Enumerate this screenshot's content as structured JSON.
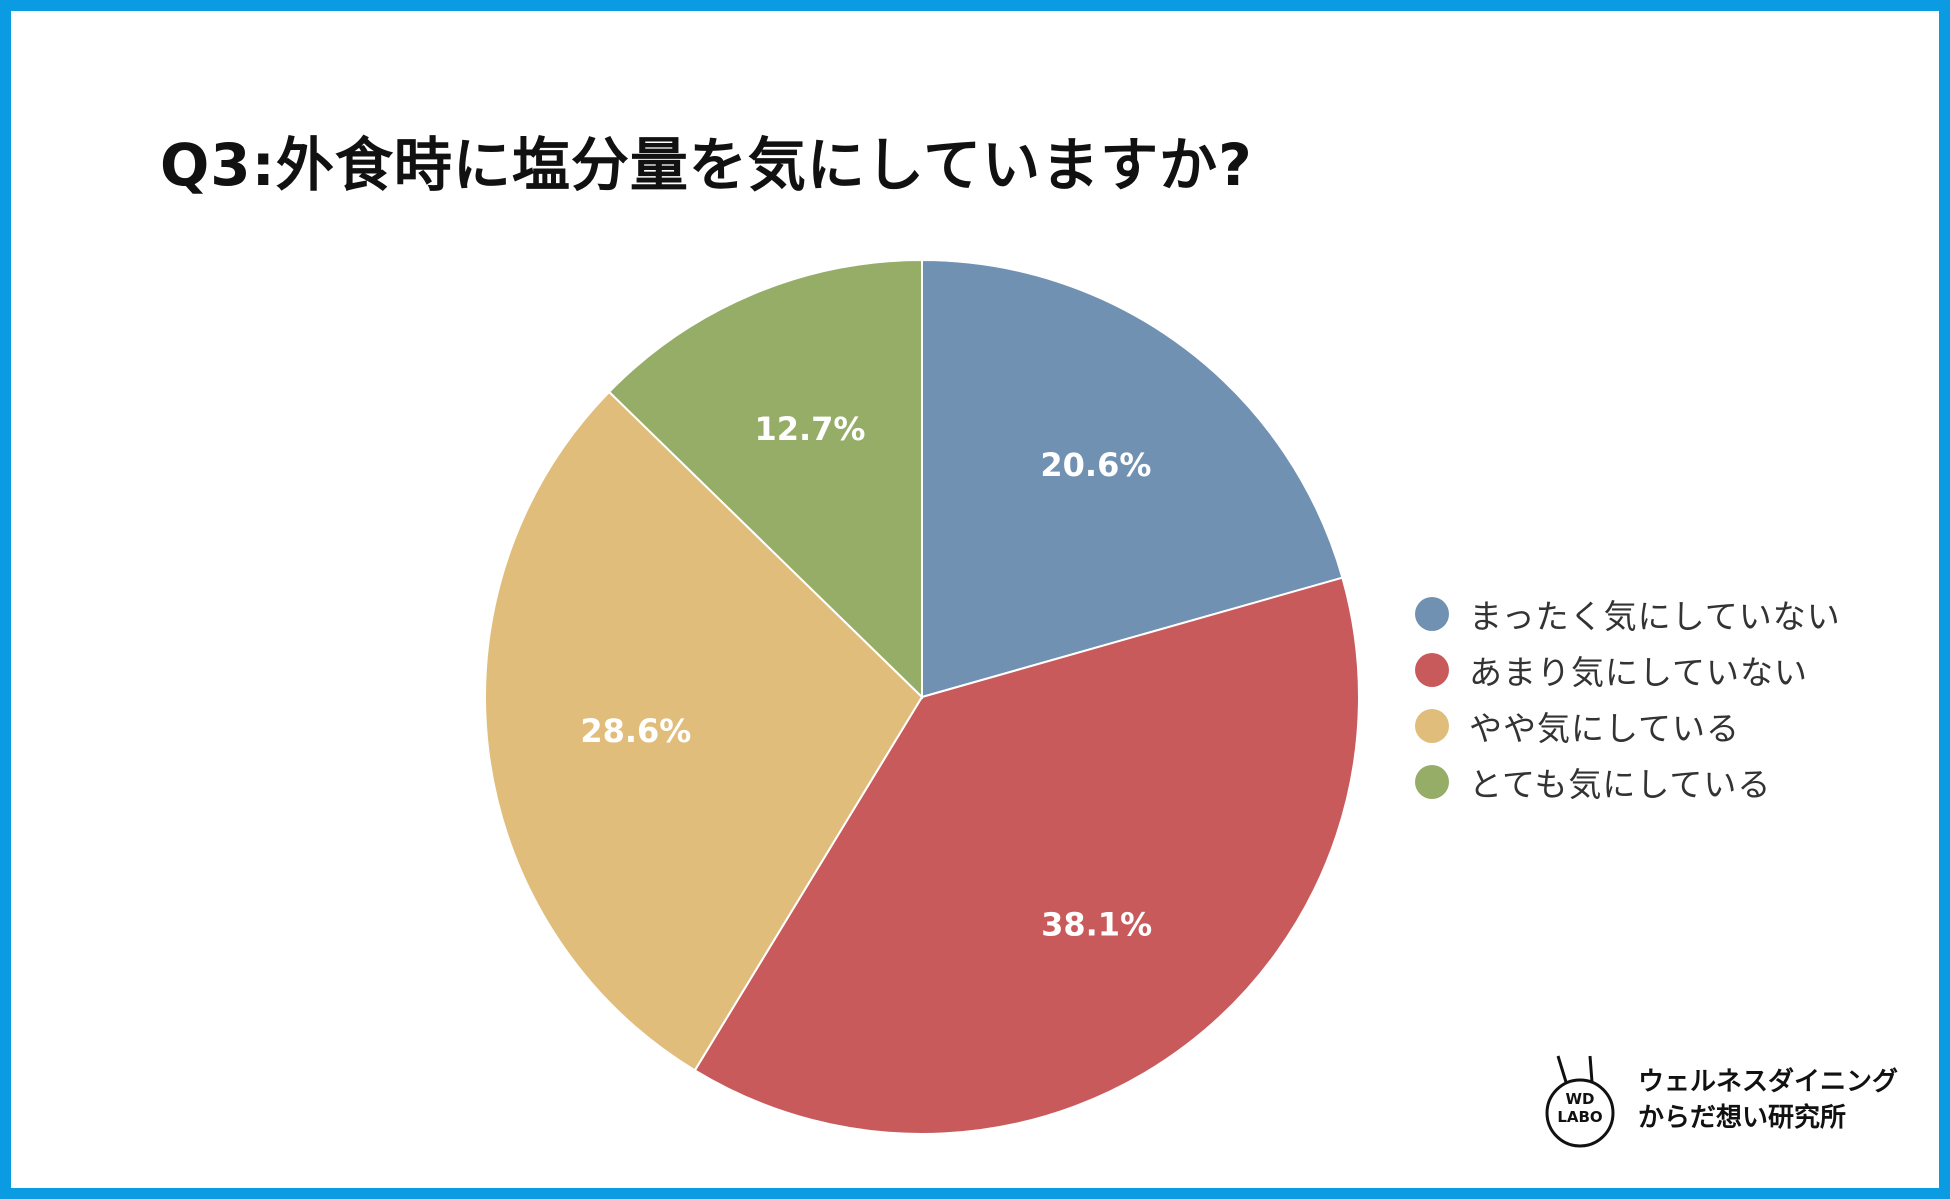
{
  "title": "Q3:外食時に塩分量を気にしていますか?",
  "chart_data": {
    "type": "pie",
    "title": "Q3:外食時に塩分量を気にしていますか?",
    "categories": [
      "まったく気にしていない",
      "あまり気にしていない",
      "やや気にしている",
      "とても気にしている"
    ],
    "values": [
      20.6,
      38.1,
      28.6,
      12.7
    ],
    "labels": [
      "20.6%",
      "38.1%",
      "28.6%",
      "12.7%"
    ],
    "colors": [
      "#7191b3",
      "#c95a5c",
      "#e0bd7b",
      "#96ad67"
    ],
    "start": "12 o'clock",
    "direction": "clockwise",
    "legend_position": "right"
  },
  "legend": [
    {
      "label": "まったく気にしていない",
      "color": "#7191b3"
    },
    {
      "label": "あまり気にしていない",
      "color": "#c95a5c"
    },
    {
      "label": "やや気にしている",
      "color": "#e0bd7b"
    },
    {
      "label": "とても気にしている",
      "color": "#96ad67"
    }
  ],
  "logo": {
    "abbr_line1": "WD",
    "abbr_line2": "LABO",
    "text_line1": "ウェルネスダイニング",
    "text_line2": "からだ想い研究所"
  },
  "frame_color": "#0b9be3"
}
